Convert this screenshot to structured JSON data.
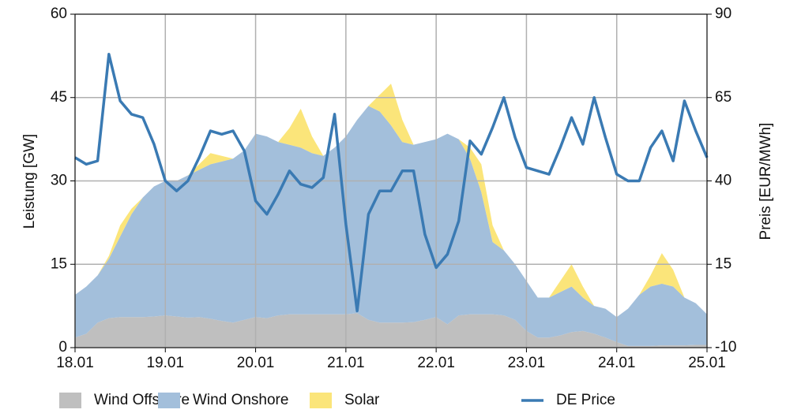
{
  "chart_data": {
    "type": "area",
    "x": [
      18,
      18.125,
      18.25,
      18.375,
      18.5,
      18.625,
      18.75,
      18.875,
      19,
      19.125,
      19.25,
      19.375,
      19.5,
      19.625,
      19.75,
      19.875,
      20,
      20.125,
      20.25,
      20.375,
      20.5,
      20.625,
      20.75,
      20.875,
      21,
      21.125,
      21.25,
      21.375,
      21.5,
      21.625,
      21.75,
      21.875,
      22,
      22.125,
      22.25,
      22.375,
      22.5,
      22.625,
      22.75,
      22.875,
      23,
      23.125,
      23.25,
      23.375,
      23.5,
      23.625,
      23.75,
      23.875,
      24,
      24.125,
      24.25,
      24.375,
      24.5,
      24.625,
      24.75,
      24.875,
      25
    ],
    "xlim": [
      18,
      25
    ],
    "xticks": [
      {
        "value": 18,
        "label": "18.01"
      },
      {
        "value": 19,
        "label": "19.01"
      },
      {
        "value": 20,
        "label": "20.01"
      },
      {
        "value": 21,
        "label": "21.01"
      },
      {
        "value": 22,
        "label": "22.01"
      },
      {
        "value": 23,
        "label": "23.01"
      },
      {
        "value": 24,
        "label": "24.01"
      },
      {
        "value": 25,
        "label": "25.01"
      }
    ],
    "ylim": [
      0,
      60
    ],
    "yticks": [
      0,
      15,
      30,
      45,
      60
    ],
    "y2lim": [
      -10,
      90
    ],
    "y2ticks": [
      -10,
      15,
      40,
      65,
      90
    ],
    "ylabel": "Leistung [GW]",
    "y2label": "Preis [EUR/MWh]",
    "grid": true,
    "stacked": true,
    "legend": "bottom",
    "series": [
      {
        "name": "Wind Offshore",
        "color": "#bfbfbf",
        "values": [
          1.8,
          2.5,
          4.5,
          5.3,
          5.5,
          5.5,
          5.5,
          5.6,
          5.8,
          5.6,
          5.4,
          5.5,
          5.2,
          4.8,
          4.5,
          5.0,
          5.5,
          5.3,
          5.8,
          6.0,
          6.0,
          6.0,
          6.0,
          6.0,
          6.0,
          6.2,
          5.0,
          4.5,
          4.5,
          4.5,
          4.6,
          5.0,
          5.5,
          4.2,
          5.8,
          6.0,
          6.0,
          6.0,
          5.8,
          5.0,
          3.0,
          1.8,
          1.8,
          2.2,
          2.8,
          3.0,
          2.5,
          1.8,
          1.0,
          0.3,
          0.3,
          0.3,
          0.4,
          0.4,
          0.4,
          0.5,
          0.5
        ]
      },
      {
        "name": "Wind Onshore",
        "color": "#a3bfdb",
        "values": [
          7.7,
          8.5,
          8.5,
          10.7,
          14.5,
          18.5,
          21.5,
          23.4,
          24.2,
          24.4,
          25.6,
          26.5,
          27.8,
          28.7,
          29.5,
          30.5,
          33,
          32.7,
          31.2,
          30.5,
          30,
          29,
          28.5,
          30,
          32,
          34.8,
          38.5,
          38,
          35.5,
          32.5,
          31.9,
          32,
          32,
          34.3,
          31.7,
          28,
          22,
          13,
          11.7,
          10,
          9,
          7.2,
          7.2,
          7.8,
          8.2,
          6,
          5,
          5.2,
          4.5,
          6.7,
          9.2,
          10.7,
          11.1,
          10.6,
          8.6,
          7.5,
          5.5
        ]
      },
      {
        "name": "Solar",
        "color": "#fbe57a",
        "values": [
          0,
          0,
          0,
          0.5,
          2,
          1,
          0,
          0,
          0,
          0,
          0,
          1,
          2,
          1,
          0,
          0,
          0,
          0,
          0,
          3,
          7,
          3,
          0,
          0,
          0,
          0,
          0,
          3,
          7.5,
          4,
          0,
          0,
          0,
          0,
          0,
          2,
          5,
          3,
          0,
          0,
          0,
          0,
          0,
          2,
          4,
          2,
          0,
          0,
          0,
          0,
          0,
          2,
          5.5,
          3,
          0,
          0,
          0
        ]
      },
      {
        "name": "DE Price",
        "color": "#3a7ab3",
        "type": "line",
        "axis": "y2",
        "values": [
          47,
          45,
          46,
          78,
          64,
          60,
          59,
          51,
          40,
          37,
          40,
          47,
          55,
          54,
          55,
          49,
          34,
          30,
          36,
          43,
          39,
          38,
          41,
          60,
          27,
          1,
          30,
          37,
          37,
          43,
          43,
          24,
          14,
          18,
          28,
          52,
          48,
          56,
          65,
          53,
          44,
          43,
          42,
          50,
          59,
          51,
          65,
          53,
          42,
          40,
          40,
          50,
          55,
          46,
          64,
          55,
          47
        ]
      }
    ]
  }
}
